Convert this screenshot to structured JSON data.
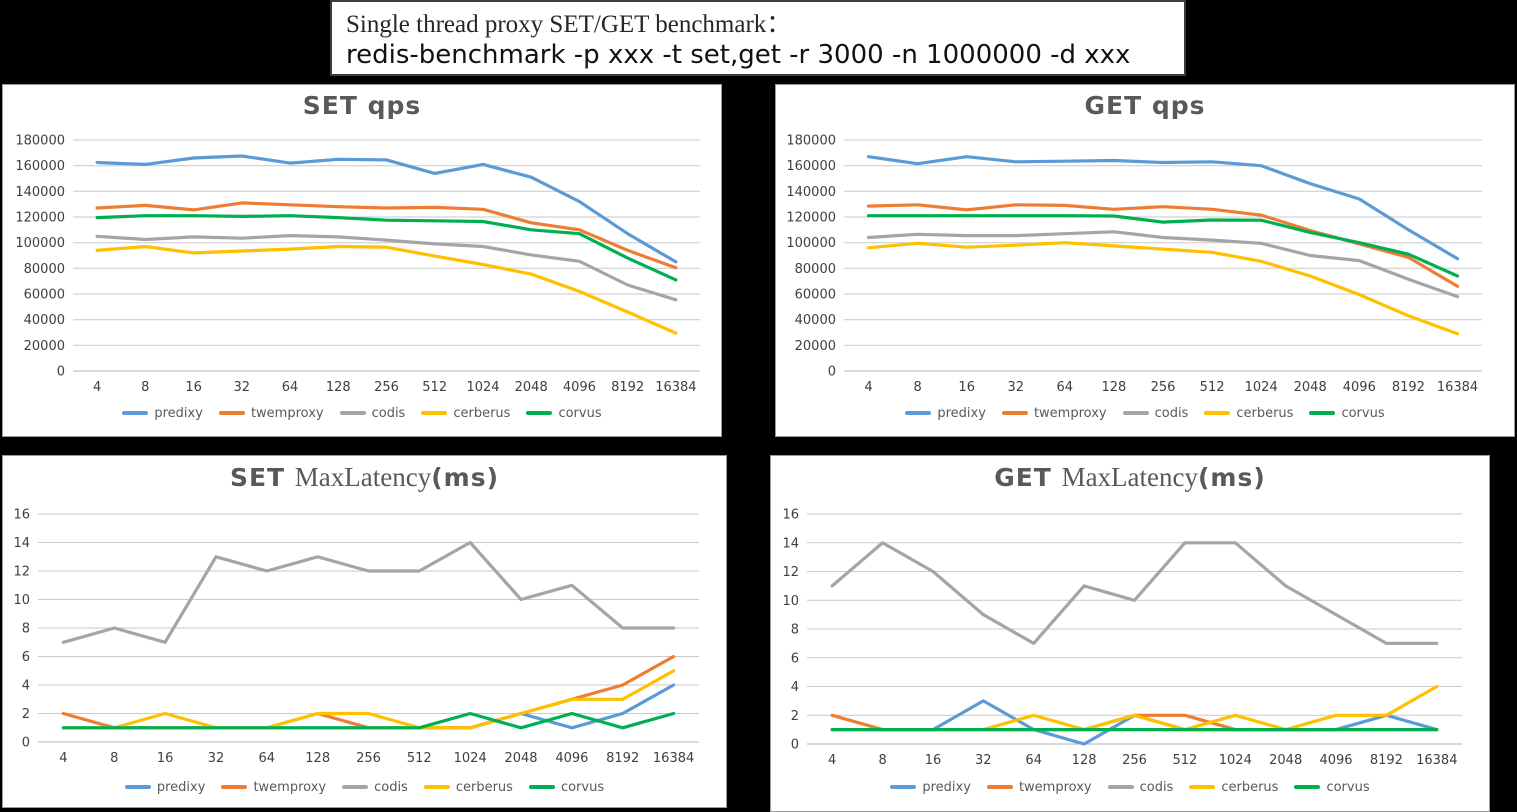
{
  "title_box": {
    "line1": "Single thread proxy SET/GET benchmark：",
    "line2": "redis-benchmark -p xxx -t set,get -r 3000 -n 1000000 -d xxx"
  },
  "legend_labels": [
    "predixy",
    "twemproxy",
    "codis",
    "cerberus",
    "corvus"
  ],
  "colors": {
    "predixy": "#5B9BD5",
    "twemproxy": "#ED7D31",
    "codis": "#A5A5A5",
    "cerberus": "#FFC000",
    "corvus": "#00B050",
    "gridline": "#C9C9C9",
    "axis_text": "#404040",
    "title_text": "#595959"
  },
  "chart_data": [
    {
      "id": "set-qps",
      "type": "line",
      "title_parts": [
        {
          "text": "SET  qps",
          "style": "bold"
        }
      ],
      "categories": [
        "4",
        "8",
        "16",
        "32",
        "64",
        "128",
        "256",
        "512",
        "1024",
        "2048",
        "4096",
        "8192",
        "16384"
      ],
      "ylim": [
        0,
        180000
      ],
      "ytick_step": 20000,
      "ytick_labels": [
        "0",
        "20000",
        "40000",
        "60000",
        "80000",
        "100000",
        "120000",
        "140000",
        "160000",
        "180000"
      ],
      "grid": true,
      "legend_position": "bottom",
      "series": [
        {
          "name": "predixy",
          "color": "#5B9BD5",
          "values": [
            162500,
            161000,
            166000,
            167500,
            162000,
            165000,
            164500,
            154000,
            161000,
            151000,
            132000,
            107000,
            85000
          ]
        },
        {
          "name": "twemproxy",
          "color": "#ED7D31",
          "values": [
            127000,
            129000,
            125500,
            131000,
            129500,
            128000,
            127000,
            127500,
            126000,
            115500,
            110000,
            94000,
            80500
          ]
        },
        {
          "name": "codis",
          "color": "#A5A5A5",
          "values": [
            105000,
            102500,
            104500,
            103500,
            105500,
            104500,
            102000,
            99000,
            97000,
            90500,
            85500,
            67000,
            55500
          ]
        },
        {
          "name": "cerberus",
          "color": "#FFC000",
          "values": [
            94000,
            97000,
            92000,
            93500,
            95000,
            97000,
            96500,
            89500,
            83000,
            75500,
            62000,
            46000,
            29500
          ]
        },
        {
          "name": "corvus",
          "color": "#00B050",
          "values": [
            119500,
            121000,
            121000,
            120500,
            121000,
            119500,
            117500,
            117000,
            116500,
            110000,
            107000,
            88000,
            71000
          ]
        }
      ]
    },
    {
      "id": "get-qps",
      "type": "line",
      "title_parts": [
        {
          "text": "GET  qps",
          "style": "bold"
        }
      ],
      "categories": [
        "4",
        "8",
        "16",
        "32",
        "64",
        "128",
        "256",
        "512",
        "1024",
        "2048",
        "4096",
        "8192",
        "16384"
      ],
      "ylim": [
        0,
        180000
      ],
      "ytick_step": 20000,
      "ytick_labels": [
        "0",
        "20000",
        "40000",
        "60000",
        "80000",
        "100000",
        "120000",
        "140000",
        "160000",
        "180000"
      ],
      "grid": true,
      "legend_position": "bottom",
      "series": [
        {
          "name": "predixy",
          "color": "#5B9BD5",
          "values": [
            167000,
            161500,
            167000,
            163000,
            163500,
            164000,
            162500,
            163000,
            160000,
            146000,
            134000,
            110000,
            87500
          ]
        },
        {
          "name": "twemproxy",
          "color": "#ED7D31",
          "values": [
            128500,
            129500,
            125500,
            129500,
            129000,
            126000,
            128000,
            126000,
            121500,
            109500,
            99000,
            88500,
            66000
          ]
        },
        {
          "name": "codis",
          "color": "#A5A5A5",
          "values": [
            104000,
            106500,
            105500,
            105500,
            107000,
            108500,
            104000,
            102000,
            99500,
            90000,
            86000,
            71500,
            58000
          ]
        },
        {
          "name": "cerberus",
          "color": "#FFC000",
          "values": [
            96000,
            99500,
            96500,
            98000,
            100000,
            97500,
            95000,
            92500,
            85500,
            74000,
            59500,
            43000,
            29000
          ]
        },
        {
          "name": "corvus",
          "color": "#00B050",
          "values": [
            121000,
            121000,
            121000,
            121000,
            121000,
            120800,
            116000,
            117700,
            117500,
            108000,
            100000,
            91000,
            74000
          ]
        }
      ]
    },
    {
      "id": "set-latency",
      "type": "line",
      "title_parts": [
        {
          "text": "SET ",
          "style": "bold"
        },
        {
          "text": "MaxLatency",
          "style": "serif"
        },
        {
          "text": "(ms)",
          "style": "bold"
        }
      ],
      "categories": [
        "4",
        "8",
        "16",
        "32",
        "64",
        "128",
        "256",
        "512",
        "1024",
        "2048",
        "4096",
        "8192",
        "16384"
      ],
      "ylim": [
        0,
        16
      ],
      "ytick_step": 2,
      "ytick_labels": [
        "0",
        "2",
        "4",
        "6",
        "8",
        "10",
        "12",
        "14",
        "16"
      ],
      "grid": true,
      "legend_position": "bottom",
      "series": [
        {
          "name": "predixy",
          "color": "#5B9BD5",
          "values": [
            1,
            1,
            1,
            1,
            1,
            1,
            1,
            1,
            1,
            2,
            1,
            2,
            4
          ]
        },
        {
          "name": "twemproxy",
          "color": "#ED7D31",
          "values": [
            2,
            1,
            1,
            1,
            1,
            2,
            1,
            1,
            1,
            2,
            3,
            4,
            6
          ]
        },
        {
          "name": "codis",
          "color": "#A5A5A5",
          "values": [
            7,
            8,
            7,
            13,
            12,
            13,
            12,
            12,
            14,
            10,
            11,
            8,
            8
          ]
        },
        {
          "name": "cerberus",
          "color": "#FFC000",
          "values": [
            1,
            1,
            2,
            1,
            1,
            2,
            2,
            1,
            1,
            2,
            3,
            3,
            5
          ]
        },
        {
          "name": "corvus",
          "color": "#00B050",
          "values": [
            1,
            1,
            1,
            1,
            1,
            1,
            1,
            1,
            2,
            1,
            2,
            1,
            2
          ]
        }
      ]
    },
    {
      "id": "get-latency",
      "type": "line",
      "title_parts": [
        {
          "text": "GET ",
          "style": "bold"
        },
        {
          "text": "MaxLatency",
          "style": "serif"
        },
        {
          "text": "(ms)",
          "style": "bold"
        }
      ],
      "categories": [
        "4",
        "8",
        "16",
        "32",
        "64",
        "128",
        "256",
        "512",
        "1024",
        "2048",
        "4096",
        "8192",
        "16384"
      ],
      "ylim": [
        0,
        16
      ],
      "ytick_step": 2,
      "ytick_labels": [
        "0",
        "2",
        "4",
        "6",
        "8",
        "10",
        "12",
        "14",
        "16"
      ],
      "grid": true,
      "legend_position": "bottom",
      "series": [
        {
          "name": "predixy",
          "color": "#5B9BD5",
          "values": [
            1,
            1,
            1,
            3,
            1,
            0,
            2,
            1,
            1,
            1,
            1,
            2,
            1
          ]
        },
        {
          "name": "twemproxy",
          "color": "#ED7D31",
          "values": [
            2,
            1,
            1,
            1,
            1,
            1,
            2,
            2,
            1,
            1,
            1,
            1,
            1
          ]
        },
        {
          "name": "codis",
          "color": "#A5A5A5",
          "values": [
            11,
            14,
            12,
            9,
            7,
            11,
            10,
            14,
            14,
            11,
            9,
            7,
            7
          ]
        },
        {
          "name": "cerberus",
          "color": "#FFC000",
          "values": [
            1,
            1,
            1,
            1,
            2,
            1,
            2,
            1,
            2,
            1,
            2,
            2,
            4
          ]
        },
        {
          "name": "corvus",
          "color": "#00B050",
          "values": [
            1,
            1,
            1,
            1,
            1,
            1,
            1,
            1,
            1,
            1,
            1,
            1,
            1
          ]
        }
      ]
    }
  ]
}
